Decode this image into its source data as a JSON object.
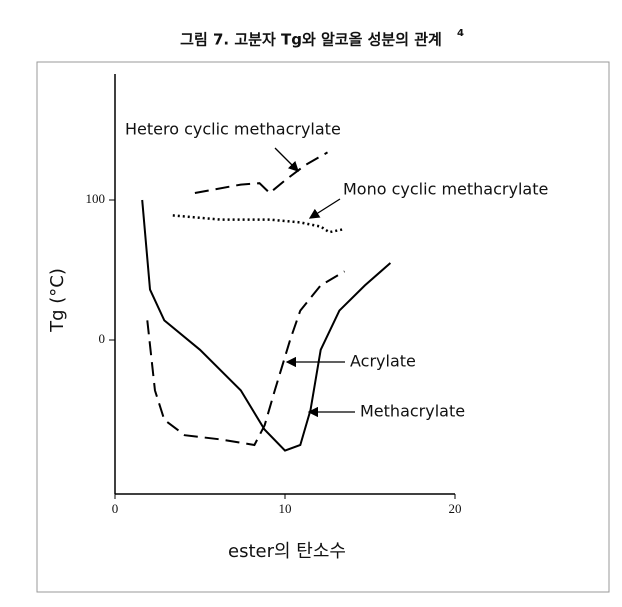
{
  "chart_data": {
    "type": "line",
    "title": "그림 7. 고분자 Tg와 알코올 성분의 관계",
    "title_footnote": "4",
    "xlabel": "ester의 탄소수",
    "ylabel": "Tg (°C)",
    "xlim": [
      0,
      20
    ],
    "ylim": [
      -110,
      190
    ],
    "xticks": [
      0,
      10,
      20
    ],
    "yticks": [
      0,
      100
    ],
    "series": [
      {
        "name": "Hetero cyclic methacrylate",
        "color": "#000000",
        "dash": "dashed",
        "x": [
          4.7,
          7.4,
          8.5,
          9.1,
          10,
          11.2,
          12.5
        ],
        "values": [
          105,
          111,
          112,
          105,
          114,
          125,
          134
        ]
      },
      {
        "name": "Mono cyclic methacrylate",
        "color": "#000000",
        "dash": "dotted",
        "x": [
          3.4,
          6.2,
          9.1,
          10.9,
          12.1,
          12.6,
          13.4
        ],
        "values": [
          89,
          86,
          86,
          84,
          81,
          77,
          79
        ]
      },
      {
        "name": "Acrylate",
        "color": "#000000",
        "dash": "dashed",
        "x": [
          1.9,
          2.35,
          2.9,
          4.1,
          6.2,
          8.2,
          8.8,
          9.4,
          10.3,
          10.9,
          12.1,
          13.5
        ],
        "values": [
          14,
          -36,
          -57,
          -68,
          -71,
          -75,
          -61,
          -36,
          0,
          21,
          39,
          49
        ]
      },
      {
        "name": "Methacrylate",
        "color": "#000000",
        "dash": "solid",
        "x": [
          1.6,
          2.06,
          2.9,
          5,
          7.4,
          8.8,
          10,
          10.9,
          11.5,
          12.1,
          13.2,
          14.7,
          16.2
        ],
        "values": [
          100,
          36,
          14,
          -7,
          -36,
          -64,
          -79,
          -75,
          -50,
          -7,
          21,
          39,
          55
        ]
      }
    ]
  }
}
